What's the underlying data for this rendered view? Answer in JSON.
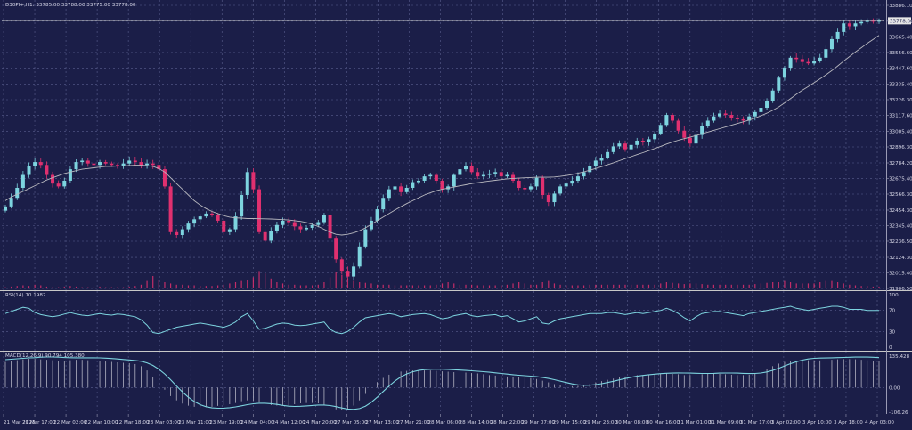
{
  "symbol_info": "D30PI+,H1: 33785.00 33788.00 33775.00 33778.00",
  "current_price_tag": "33778.00",
  "colors": {
    "background": "#1b1e48",
    "bull": "#7dd4df",
    "bear": "#e0306f",
    "grid": "#5a5f8e",
    "ma": "#b8b8bf",
    "indicator": "#7dd4df",
    "volume": "#e0306f"
  },
  "price_axis": [
    "33886.10",
    "33775.00",
    "33665.40",
    "33556.60",
    "33447.60",
    "33335.40",
    "33226.30",
    "33117.60",
    "33005.40",
    "32896.30",
    "32784.20",
    "32675.40",
    "32566.30",
    "32454.30",
    "32345.40",
    "32236.50",
    "32124.30",
    "32015.40",
    "31906.50"
  ],
  "rsi": {
    "label": "RSI(14) 70.1982",
    "levels": [
      "100",
      "70",
      "30",
      "0"
    ]
  },
  "macd": {
    "label": "MACD(12,26,9) 90.794 105.380",
    "levels": [
      "135.428",
      "0.00",
      "-106.26"
    ]
  },
  "time_axis": [
    "21 Mar 2023",
    "21 Mar 17:00",
    "22 Mar 02:00",
    "22 Mar 10:00",
    "22 Mar 18:00",
    "23 Mar 03:00",
    "23 Mar 11:00",
    "23 Mar 19:00",
    "24 Mar 04:00",
    "24 Mar 12:00",
    "24 Mar 20:00",
    "27 Mar 05:00",
    "27 Mar 13:00",
    "27 Mar 21:00",
    "28 Mar 06:00",
    "28 Mar 14:00",
    "28 Mar 22:00",
    "29 Mar 07:00",
    "29 Mar 15:00",
    "29 Mar 23:00",
    "30 Mar 08:00",
    "30 Mar 16:00",
    "31 Mar 01:00",
    "31 Mar 09:00",
    "31 Mar 17:00",
    "3 Apr 02:00",
    "3 Apr 10:00",
    "3 Apr 18:00",
    "4 Apr 03:00"
  ],
  "close_series": [
    32480,
    32540,
    32610,
    32700,
    32760,
    32790,
    32770,
    32700,
    32640,
    32620,
    32660,
    32740,
    32790,
    32800,
    32780,
    32770,
    32790,
    32780,
    32770,
    32760,
    32780,
    32800,
    32790,
    32770,
    32780,
    32770,
    32740,
    32620,
    32300,
    32280,
    32320,
    32360,
    32390,
    32410,
    32430,
    32420,
    32380,
    32300,
    32320,
    32410,
    32560,
    32720,
    32600,
    32300,
    32240,
    32310,
    32350,
    32380,
    32370,
    32340,
    32320,
    32330,
    32350,
    32370,
    32420,
    32260,
    32110,
    32030,
    31990,
    32060,
    32200,
    32320,
    32380,
    32460,
    32540,
    32600,
    32620,
    32580,
    32610,
    32650,
    32660,
    32690,
    32700,
    32660,
    32600,
    32620,
    32700,
    32740,
    32760,
    32720,
    32690,
    32700,
    32710,
    32720,
    32690,
    32700,
    32660,
    32610,
    32600,
    32620,
    32680,
    32560,
    32510,
    32570,
    32620,
    32640,
    32660,
    32690,
    32720,
    32760,
    32800,
    32820,
    32860,
    32900,
    32920,
    32880,
    32910,
    32940,
    32930,
    32950,
    32990,
    33050,
    33120,
    33080,
    33010,
    32960,
    32920,
    32980,
    33040,
    33080,
    33110,
    33130,
    33120,
    33100,
    33090,
    33080,
    33110,
    33140,
    33170,
    33220,
    33290,
    33380,
    33450,
    33520,
    33510,
    33490,
    33480,
    33500,
    33520,
    33580,
    33650,
    33700,
    33760,
    33740,
    33760,
    33770,
    33778,
    33775,
    33778
  ],
  "ma_series": [
    32520,
    32545,
    32565,
    32585,
    32605,
    32625,
    32645,
    32665,
    32680,
    32695,
    32710,
    32720,
    32730,
    32740,
    32745,
    32750,
    32755,
    32760,
    32760,
    32762,
    32764,
    32766,
    32768,
    32768,
    32766,
    32760,
    32745,
    32720,
    32680,
    32640,
    32600,
    32560,
    32520,
    32490,
    32465,
    32445,
    32430,
    32415,
    32405,
    32400,
    32398,
    32395,
    32395,
    32394,
    32393,
    32392,
    32390,
    32388,
    32385,
    32380,
    32375,
    32368,
    32355,
    32340,
    32320,
    32300,
    32285,
    32280,
    32285,
    32295,
    32310,
    32330,
    32355,
    32380,
    32405,
    32430,
    32455,
    32478,
    32500,
    32520,
    32540,
    32560,
    32575,
    32590,
    32600,
    32608,
    32616,
    32624,
    32632,
    32640,
    32646,
    32652,
    32658,
    32663,
    32668,
    32673,
    32676,
    32678,
    32680,
    32682,
    32684,
    32684,
    32684,
    32686,
    32690,
    32696,
    32703,
    32712,
    32722,
    32733,
    32745,
    32758,
    32771,
    32785,
    32800,
    32814,
    32828,
    32842,
    32856,
    32870,
    32885,
    32900,
    32916,
    32930,
    32943,
    32954,
    32964,
    32976,
    32988,
    33000,
    33012,
    33024,
    33036,
    33048,
    33060,
    33072,
    33084,
    33098,
    33114,
    33132,
    33152,
    33176,
    33204,
    33234,
    33264,
    33292,
    33318,
    33345,
    33372,
    33400,
    33430,
    33462,
    33496,
    33528,
    33560,
    33590,
    33620,
    33648,
    33676
  ],
  "rsi_series": [
    64,
    68,
    72,
    76,
    74,
    66,
    62,
    60,
    58,
    60,
    63,
    66,
    63,
    61,
    60,
    62,
    64,
    62,
    61,
    63,
    62,
    60,
    58,
    52,
    42,
    28,
    26,
    30,
    34,
    38,
    40,
    42,
    44,
    46,
    44,
    42,
    40,
    38,
    42,
    48,
    58,
    64,
    50,
    34,
    36,
    40,
    44,
    46,
    45,
    42,
    41,
    42,
    44,
    46,
    48,
    34,
    28,
    26,
    30,
    38,
    48,
    56,
    58,
    60,
    62,
    64,
    62,
    58,
    60,
    62,
    63,
    64,
    62,
    58,
    54,
    56,
    60,
    62,
    64,
    60,
    58,
    60,
    61,
    62,
    58,
    60,
    54,
    48,
    50,
    54,
    58,
    46,
    44,
    50,
    54,
    56,
    58,
    60,
    62,
    64,
    64,
    64,
    66,
    66,
    64,
    62,
    64,
    66,
    64,
    66,
    68,
    70,
    74,
    70,
    64,
    56,
    50,
    58,
    64,
    66,
    68,
    68,
    66,
    64,
    62,
    60,
    64,
    66,
    68,
    70,
    72,
    74,
    76,
    78,
    74,
    72,
    70,
    72,
    74,
    76,
    78,
    78,
    76,
    72,
    72,
    72,
    70,
    70,
    70
  ],
  "macd_series": [
    120,
    124,
    128,
    132,
    134,
    134,
    132,
    130,
    128,
    126,
    126,
    128,
    130,
    130,
    128,
    126,
    124,
    122,
    120,
    118,
    116,
    114,
    110,
    100,
    80,
    50,
    20,
    -10,
    -40,
    -60,
    -75,
    -85,
    -90,
    -92,
    -92,
    -90,
    -86,
    -82,
    -78,
    -72,
    -64,
    -60,
    -62,
    -70,
    -78,
    -82,
    -84,
    -84,
    -82,
    -78,
    -74,
    -72,
    -72,
    -74,
    -80,
    -92,
    -102,
    -106,
    -100,
    -84,
    -60,
    -30,
    0,
    25,
    45,
    60,
    70,
    75,
    78,
    80,
    80,
    80,
    80,
    78,
    76,
    74,
    72,
    72,
    70,
    68,
    66,
    62,
    58,
    56,
    54,
    52,
    50,
    48,
    46,
    44,
    40,
    32,
    24,
    16,
    10,
    6,
    6,
    8,
    12,
    18,
    24,
    30,
    36,
    42,
    48,
    52,
    56,
    58,
    58,
    60,
    62,
    64,
    66,
    64,
    62,
    58,
    58,
    60,
    62,
    64,
    64,
    64,
    62,
    60,
    58,
    58,
    60,
    66,
    74,
    86,
    100,
    112,
    120,
    124,
    126,
    128,
    128,
    128,
    127,
    128,
    130,
    132,
    133,
    133,
    132,
    130,
    128,
    126,
    124
  ],
  "volume_series": [
    2,
    3,
    4,
    5,
    4,
    6,
    5,
    3,
    2,
    2,
    3,
    4,
    3,
    2,
    2,
    2,
    3,
    2,
    2,
    2,
    2,
    3,
    4,
    6,
    12,
    20,
    14,
    10,
    8,
    6,
    6,
    5,
    5,
    4,
    4,
    4,
    5,
    6,
    8,
    10,
    12,
    14,
    18,
    28,
    24,
    16,
    10,
    8,
    6,
    6,
    5,
    5,
    5,
    6,
    10,
    18,
    26,
    22,
    16,
    12,
    10,
    9,
    8,
    6,
    6,
    6,
    5,
    5,
    5,
    5,
    5,
    5,
    5,
    6,
    8,
    10,
    8,
    6,
    6,
    6,
    5,
    5,
    5,
    5,
    5,
    6,
    8,
    10,
    8,
    6,
    6,
    10,
    12,
    8,
    6,
    5,
    5,
    5,
    5,
    6,
    6,
    6,
    6,
    6,
    6,
    6,
    6,
    6,
    6,
    6,
    6,
    8,
    10,
    9,
    8,
    7,
    8,
    8,
    7,
    6,
    6,
    6,
    6,
    6,
    6,
    6,
    6,
    7,
    8,
    9,
    10,
    10,
    12,
    10,
    8,
    8,
    8,
    8,
    10,
    12,
    12,
    10,
    8,
    6,
    5,
    4,
    4,
    3,
    3
  ]
}
